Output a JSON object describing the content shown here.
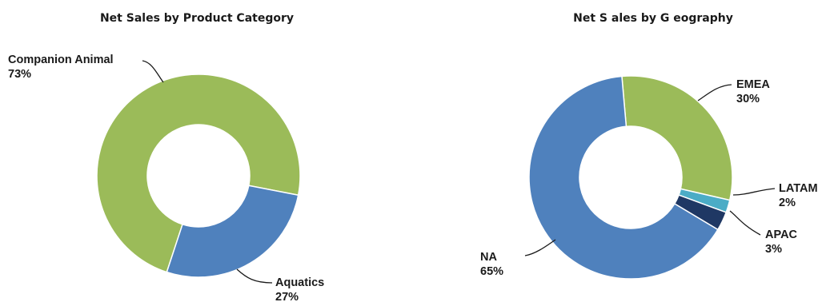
{
  "charts": [
    {
      "id": "category",
      "title": "Net Sales by Product Category"
    },
    {
      "id": "geography",
      "title": "Net S ales  by G eography"
    }
  ],
  "chart_data": [
    {
      "type": "pie",
      "title": "Net Sales by Product Category",
      "slices": [
        {
          "name": "Companion Animal",
          "value": 73,
          "pct_label": "73%",
          "color": "#9BBB59"
        },
        {
          "name": "Aquatics",
          "value": 27,
          "pct_label": "27%",
          "color": "#4F81BD"
        }
      ]
    },
    {
      "type": "pie",
      "title": "Net S ales  by G eography",
      "slices": [
        {
          "name": "EMEA",
          "value": 30,
          "pct_label": "30%",
          "color": "#9BBB59"
        },
        {
          "name": "LATAM",
          "value": 2,
          "pct_label": "2%",
          "color": "#4BACC6"
        },
        {
          "name": "APAC",
          "value": 3,
          "pct_label": "3%",
          "color": "#1F3864"
        },
        {
          "name": "NA",
          "value": 65,
          "pct_label": "65%",
          "color": "#4F81BD"
        }
      ]
    }
  ]
}
